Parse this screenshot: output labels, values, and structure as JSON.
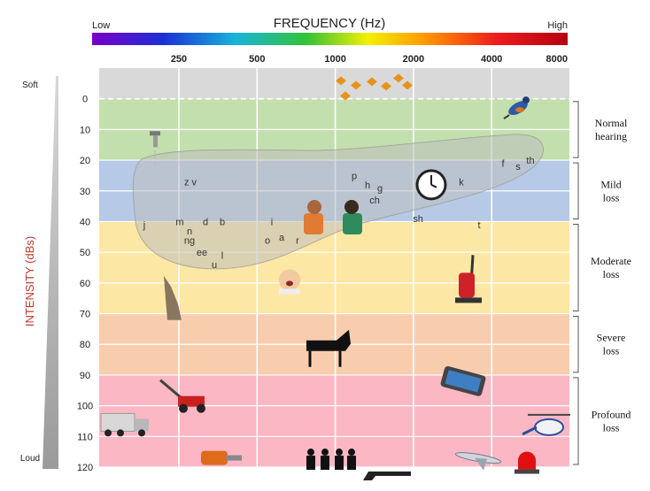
{
  "chart_data": {
    "type": "heatmap",
    "title": "FREQUENCY (Hz)",
    "ylabel": "INTENSITY (dBs)",
    "spectrum": {
      "low_label": "Low",
      "high_label": "High"
    },
    "x_ticks": [
      "250",
      "500",
      "1000",
      "2000",
      "4000",
      "8000"
    ],
    "y_ticks": [
      0,
      10,
      20,
      30,
      40,
      50,
      60,
      70,
      80,
      90,
      100,
      110,
      120
    ],
    "ylim": [
      -10,
      120
    ],
    "y_ends": {
      "top": "Soft",
      "bottom": "Loud"
    },
    "bands": [
      {
        "label": "",
        "from": -10,
        "to": 0,
        "color": "#d9d9d9"
      },
      {
        "label": "Normal hearing",
        "from": 0,
        "to": 20,
        "color": "#c3dfae"
      },
      {
        "label": "Mild loss",
        "from": 20,
        "to": 40,
        "color": "#b6c9e6"
      },
      {
        "label": "Moderate loss",
        "from": 40,
        "to": 70,
        "color": "#fde7a4"
      },
      {
        "label": "Severe loss",
        "from": 70,
        "to": 90,
        "color": "#f8cdae"
      },
      {
        "label": "Profound loss",
        "from": 90,
        "to": 120,
        "color": "#fbb7c4"
      }
    ],
    "speech_sounds": [
      {
        "text": "z v",
        "x": 215,
        "y": 27
      },
      {
        "text": "j",
        "x": 163,
        "y": 41
      },
      {
        "text": "m",
        "x": 203,
        "y": 40
      },
      {
        "text": "d",
        "x": 232,
        "y": 40
      },
      {
        "text": "b",
        "x": 251,
        "y": 40
      },
      {
        "text": "n",
        "x": 214,
        "y": 43
      },
      {
        "text": "ng",
        "x": 214,
        "y": 46
      },
      {
        "text": "ee",
        "x": 228,
        "y": 50
      },
      {
        "text": "l",
        "x": 251,
        "y": 51
      },
      {
        "text": "u",
        "x": 242,
        "y": 54
      },
      {
        "text": "i",
        "x": 307,
        "y": 40
      },
      {
        "text": "o",
        "x": 302,
        "y": 46
      },
      {
        "text": "a",
        "x": 318,
        "y": 45
      },
      {
        "text": "r",
        "x": 336,
        "y": 46
      },
      {
        "text": "p",
        "x": 400,
        "y": 25
      },
      {
        "text": "h",
        "x": 415,
        "y": 28
      },
      {
        "text": "g",
        "x": 429,
        "y": 29
      },
      {
        "text": "ch",
        "x": 423,
        "y": 33
      },
      {
        "text": "k",
        "x": 521,
        "y": 27
      },
      {
        "text": "sh",
        "x": 472,
        "y": 39
      },
      {
        "text": "t",
        "x": 541,
        "y": 41
      },
      {
        "text": "f",
        "x": 568,
        "y": 21
      },
      {
        "text": "s",
        "x": 585,
        "y": 22
      },
      {
        "text": "th",
        "x": 599,
        "y": 20
      }
    ],
    "icons": [
      {
        "name": "autumn-leaves-icon",
        "x": 420,
        "y": -5
      },
      {
        "name": "bird-icon",
        "x": 585,
        "y": 3
      },
      {
        "name": "dripping-faucet-icon",
        "x": 175,
        "y": 14
      },
      {
        "name": "clock-icon",
        "x": 487,
        "y": 28
      },
      {
        "name": "talking-people-icon",
        "x": 375,
        "y": 39
      },
      {
        "name": "crying-baby-icon",
        "x": 327,
        "y": 59
      },
      {
        "name": "howling-wolf-icon",
        "x": 195,
        "y": 64
      },
      {
        "name": "vacuum-cleaner-icon",
        "x": 530,
        "y": 59
      },
      {
        "name": "grand-piano-icon",
        "x": 370,
        "y": 81
      },
      {
        "name": "smartphone-icon",
        "x": 523,
        "y": 92
      },
      {
        "name": "lawn-mower-icon",
        "x": 207,
        "y": 98
      },
      {
        "name": "truck-icon",
        "x": 142,
        "y": 106
      },
      {
        "name": "helicopter-icon",
        "x": 620,
        "y": 107
      },
      {
        "name": "chainsaw-icon",
        "x": 245,
        "y": 117
      },
      {
        "name": "soldiers-icon",
        "x": 373,
        "y": 118
      },
      {
        "name": "rifle-icon",
        "x": 440,
        "y": 122
      },
      {
        "name": "airplane-icon",
        "x": 540,
        "y": 117
      },
      {
        "name": "siren-icon",
        "x": 595,
        "y": 119
      }
    ]
  }
}
